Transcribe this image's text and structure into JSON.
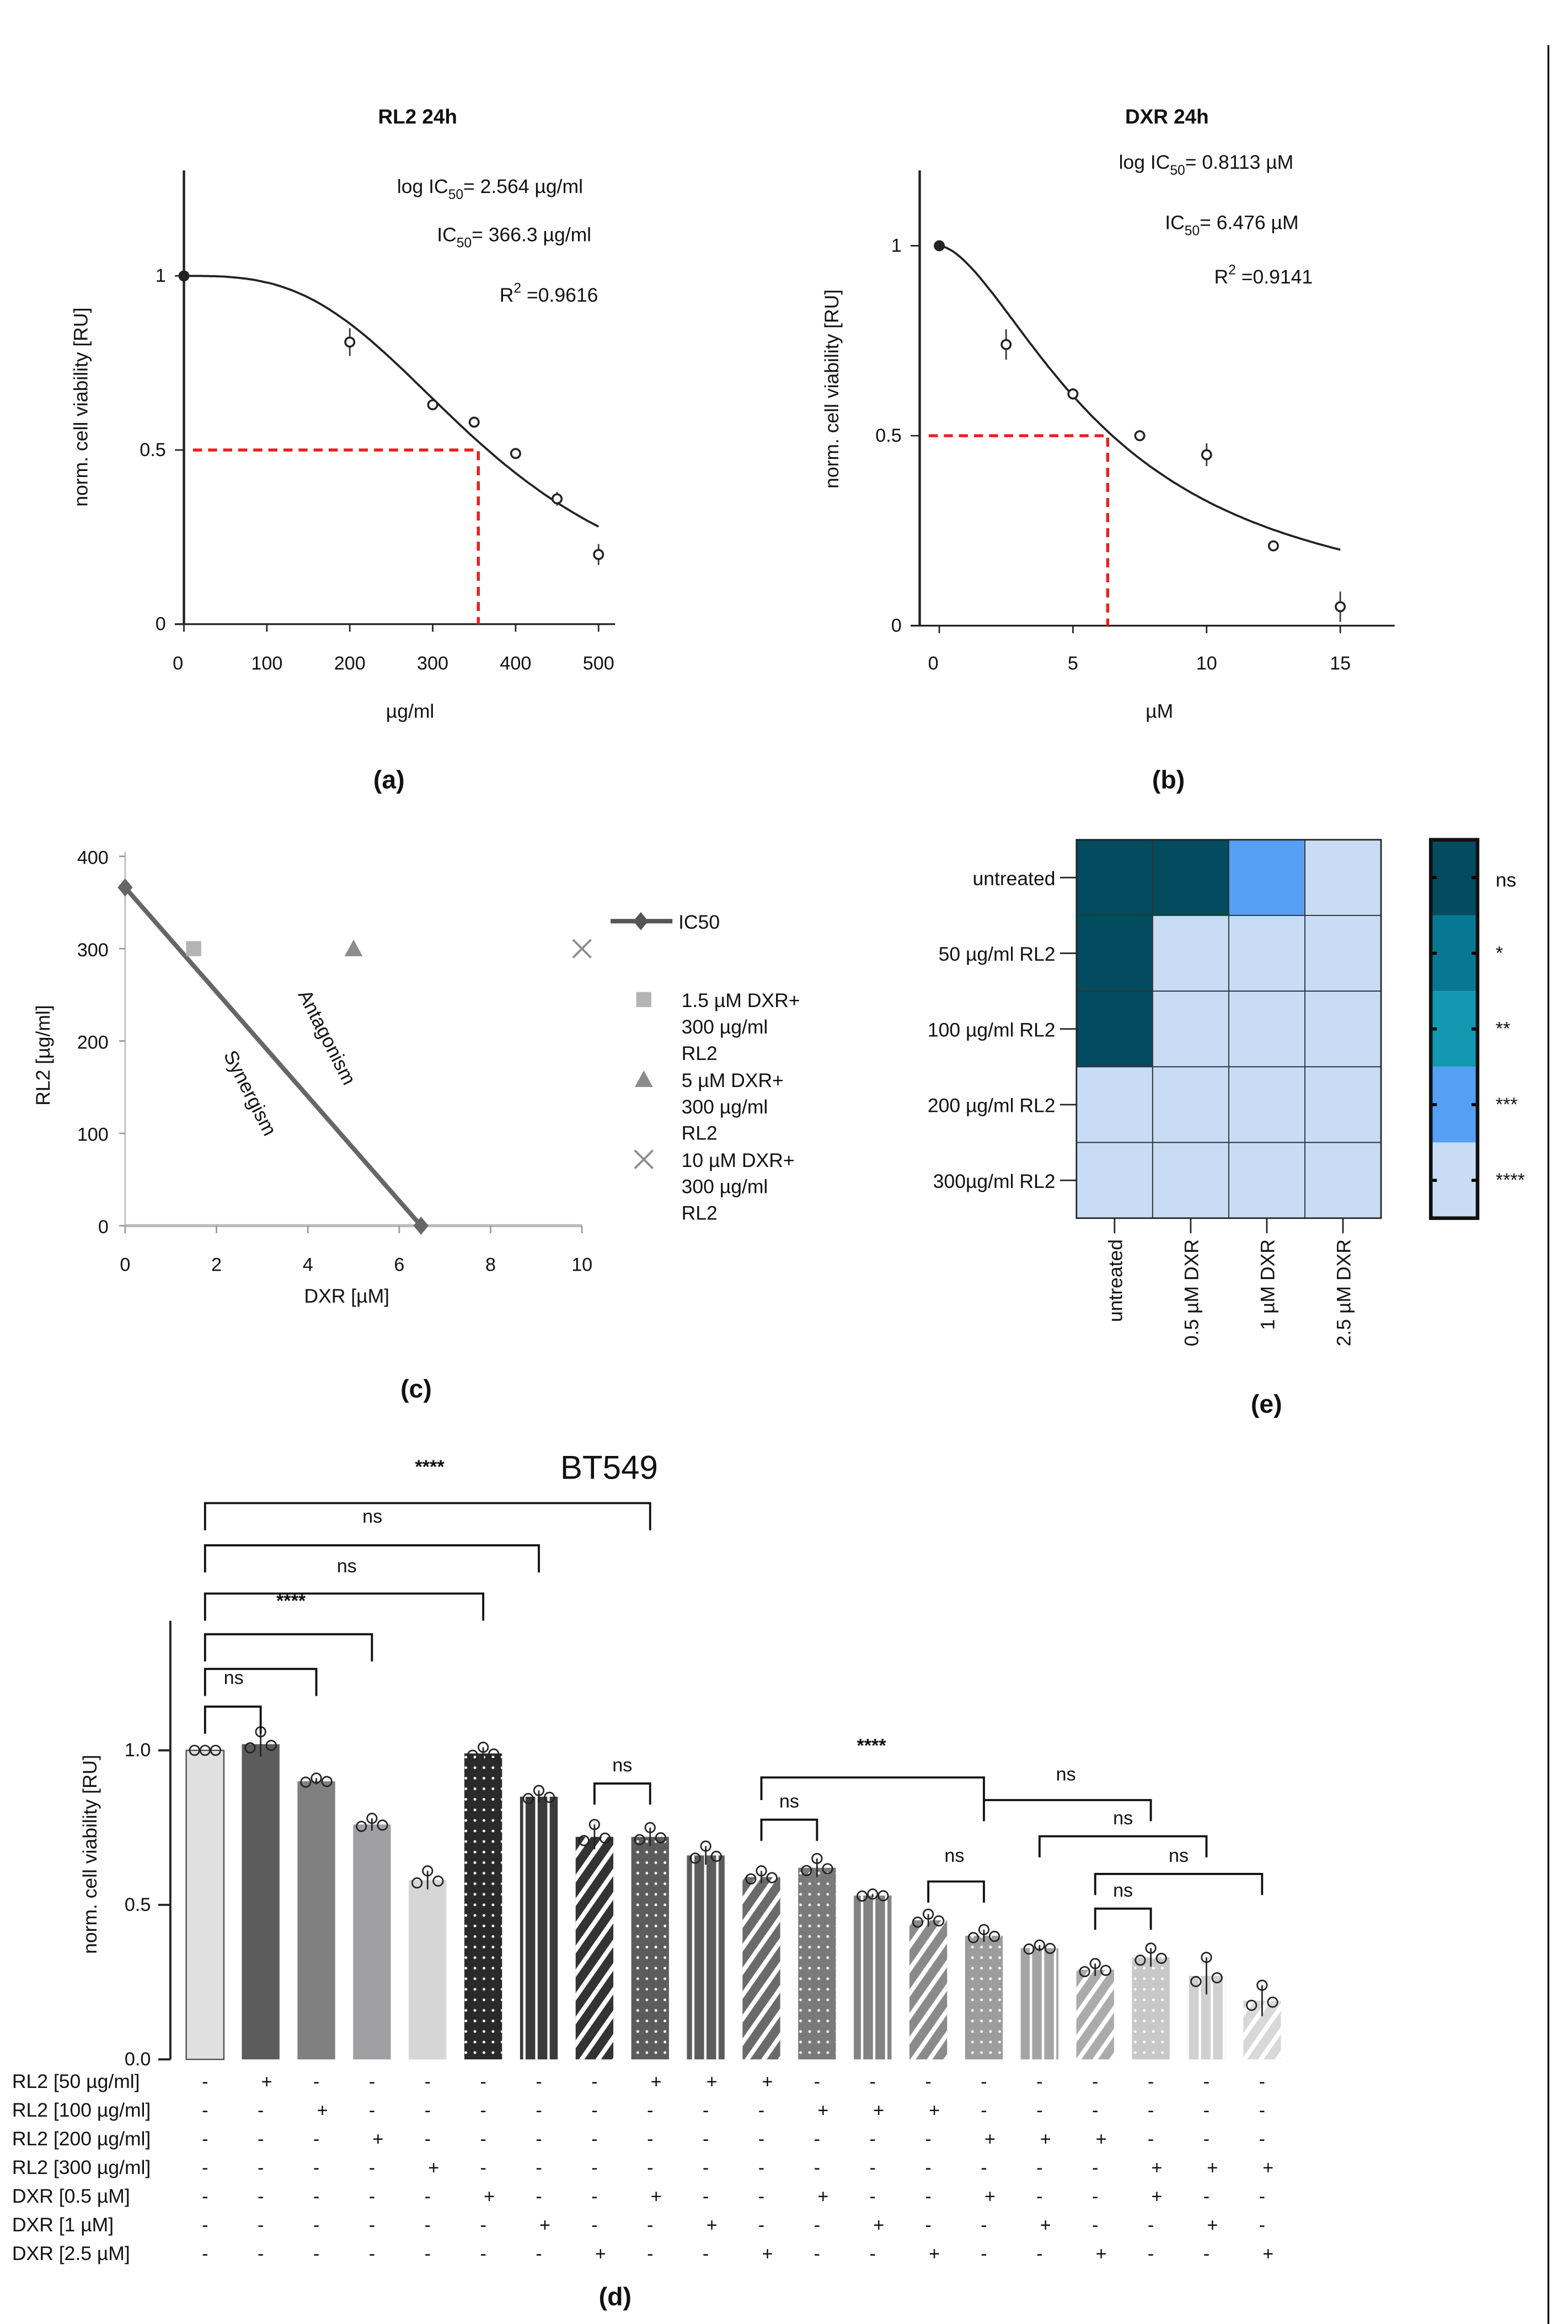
{
  "panel_labels": {
    "a": "(a)",
    "b": "(b)",
    "c": "(c)",
    "d": "(d)",
    "e": "(e)"
  },
  "chart_data": [
    {
      "id": "a",
      "type": "scatter",
      "title": "RL2  24h",
      "xlabel": "µg/ml",
      "ylabel": "norm. cell viability [RU]",
      "xlim": [
        0,
        500
      ],
      "ylim": [
        0,
        1.3
      ],
      "xticks": [
        0,
        100,
        200,
        300,
        400,
        500
      ],
      "yticks": [
        {
          "v": 0,
          "t": "0"
        },
        {
          "v": 0.5,
          "t": "0.5"
        },
        {
          "v": 1,
          "t": "1"
        }
      ],
      "points": [
        {
          "x": 0,
          "y": 1.0,
          "sd": 0
        },
        {
          "x": 200,
          "y": 0.81,
          "sd": 0.04
        },
        {
          "x": 300,
          "y": 0.63,
          "sd": 0.01
        },
        {
          "x": 350,
          "y": 0.58,
          "sd": 0.01
        },
        {
          "x": 400,
          "y": 0.49,
          "sd": 0.01
        },
        {
          "x": 450,
          "y": 0.36,
          "sd": 0.02
        },
        {
          "x": 500,
          "y": 0.2,
          "sd": 0.03
        }
      ],
      "fit": {
        "model": "log",
        "logIC50": 2.564,
        "hill": 3.04
      },
      "ic50_marker": {
        "x": 355,
        "y": 0.5,
        "color": "#e8201c"
      },
      "annotations": [
        {
          "pre": "log IC",
          "sub": "50",
          "post": "= 2.564 µg/ml"
        },
        {
          "pre": "IC",
          "sub": "50",
          "post": "= 366.3 µg/ml"
        },
        {
          "pre": "R",
          "sup": "2",
          "post": " =0.9616"
        }
      ]
    },
    {
      "id": "b",
      "type": "scatter",
      "title": "DXR 24h",
      "xlabel": "µM",
      "ylabel": "norm. cell viability [RU]",
      "xlim": [
        0,
        17
      ],
      "ylim": [
        0,
        1.2
      ],
      "xticks": [
        0,
        5,
        10,
        15
      ],
      "yticks": [
        {
          "v": 0,
          "t": "0"
        },
        {
          "v": 0.5,
          "t": "0.5"
        },
        {
          "v": 1,
          "t": "1"
        }
      ],
      "points": [
        {
          "x": 0,
          "y": 1.0,
          "sd": 0
        },
        {
          "x": 2.5,
          "y": 0.74,
          "sd": 0.04
        },
        {
          "x": 5,
          "y": 0.61,
          "sd": 0.015
        },
        {
          "x": 7.5,
          "y": 0.5,
          "sd": 0.005
        },
        {
          "x": 10,
          "y": 0.45,
          "sd": 0.03
        },
        {
          "x": 12.5,
          "y": 0.21,
          "sd": 0.005
        },
        {
          "x": 15,
          "y": 0.05,
          "sd": 0.04
        }
      ],
      "fit": {
        "model": "lin",
        "IC50": 6.476,
        "hill": 1.65
      },
      "ic50_marker": {
        "x": 6.3,
        "y": 0.5,
        "color": "#e8201c"
      },
      "annotations": [
        {
          "pre": "log IC",
          "sub": "50",
          "post": "= 0.8113 µM"
        },
        {
          "pre": "IC",
          "sub": "50",
          "post": "= 6.476 µM"
        },
        {
          "pre": "R",
          "sup": "2",
          "post": " =0.9141"
        }
      ]
    },
    {
      "id": "c",
      "type": "scatter",
      "title": "",
      "xlabel": "DXR [µM]",
      "ylabel": "RL2 [µg/ml]",
      "xlim": [
        0,
        10
      ],
      "ylim": [
        0,
        400
      ],
      "xticks": [
        0,
        2,
        4,
        6,
        8,
        10
      ],
      "yticks": [
        0,
        100,
        200,
        300,
        400
      ],
      "isobole": {
        "name": "IC50",
        "points": [
          [
            0,
            366.3
          ],
          [
            6.476,
            0
          ]
        ],
        "color": "#666666"
      },
      "regions": [
        "Antagonism",
        "Synergism"
      ],
      "combos": [
        {
          "x": 1.5,
          "y": 300,
          "marker": "square",
          "color": "#b4b4b4",
          "label": [
            "1.5 µM DXR+",
            "300 µg/ml",
            "RL2"
          ]
        },
        {
          "x": 5,
          "y": 300,
          "marker": "triangle",
          "color": "#8c8c8c",
          "label": [
            "5 µM DXR+",
            "300 µg/ml",
            "RL2"
          ]
        },
        {
          "x": 10,
          "y": 300,
          "marker": "x",
          "color": "#8c8c8c",
          "label": [
            "10 µM DXR+",
            "300 µg/ml",
            "RL2"
          ]
        }
      ]
    },
    {
      "id": "e",
      "type": "heatmap",
      "rows": [
        "untreated",
        "50 µg/ml RL2",
        "100 µg/ml RL2",
        "200 µg/ml RL2",
        "300µg/ml RL2"
      ],
      "cols": [
        "untreated",
        "0.5 µM DXR",
        "1 µM DXR",
        "2.5 µM DXR"
      ],
      "values": [
        [
          "ns",
          "ns",
          "***",
          "****"
        ],
        [
          "ns",
          "****",
          "****",
          "****"
        ],
        [
          "ns",
          "****",
          "****",
          "****"
        ],
        [
          "****",
          "****",
          "****",
          "****"
        ],
        [
          "****",
          "****",
          "****",
          "****"
        ]
      ],
      "legend": [
        {
          "label": "ns",
          "color": "#034b5e"
        },
        {
          "label": "*",
          "color": "#077893"
        },
        {
          "label": "**",
          "color": "#1298b0"
        },
        {
          "label": "***",
          "color": "#55a0f5"
        },
        {
          "label": "****",
          "color": "#c8dcf5"
        }
      ]
    },
    {
      "id": "d",
      "type": "bar",
      "title": "BT549",
      "ylabel": "norm. cell viability [RU]",
      "ylim": [
        0,
        1.4
      ],
      "yticks": [
        {
          "v": 0,
          "t": "0.0"
        },
        {
          "v": 0.5,
          "t": "0.5"
        },
        {
          "v": 1,
          "t": "1.0"
        }
      ],
      "bars": [
        {
          "value": 1.0,
          "sd": 0.0,
          "color": "#e0e0e0",
          "pattern": "none"
        },
        {
          "value": 1.02,
          "sd": 0.04,
          "color": "#5c5c5c",
          "pattern": "none"
        },
        {
          "value": 0.9,
          "sd": 0.01,
          "color": "#808080",
          "pattern": "none"
        },
        {
          "value": 0.76,
          "sd": 0.02,
          "color": "#a0a0a2",
          "pattern": "none"
        },
        {
          "value": 0.58,
          "sd": 0.03,
          "color": "#d6d6d6",
          "pattern": "none"
        },
        {
          "value": 0.99,
          "sd": 0.02,
          "color": "#2a2a2a",
          "pattern": "dots"
        },
        {
          "value": 0.85,
          "sd": 0.02,
          "color": "#3a3a3a",
          "pattern": "vstripes"
        },
        {
          "value": 0.72,
          "sd": 0.04,
          "color": "#333333",
          "pattern": "diag"
        },
        {
          "value": 0.72,
          "sd": 0.03,
          "color": "#5c5c5c",
          "pattern": "dots"
        },
        {
          "value": 0.66,
          "sd": 0.03,
          "color": "#5c5c5c",
          "pattern": "vstripes"
        },
        {
          "value": 0.59,
          "sd": 0.02,
          "color": "#6a6a6a",
          "pattern": "diag"
        },
        {
          "value": 0.62,
          "sd": 0.03,
          "color": "#7a7a7a",
          "pattern": "dots"
        },
        {
          "value": 0.53,
          "sd": 0.005,
          "color": "#838383",
          "pattern": "vstripes"
        },
        {
          "value": 0.45,
          "sd": 0.02,
          "color": "#8a8a8a",
          "pattern": "diag"
        },
        {
          "value": 0.4,
          "sd": 0.02,
          "color": "#9c9c9c",
          "pattern": "dots"
        },
        {
          "value": 0.36,
          "sd": 0.01,
          "color": "#a4a4a4",
          "pattern": "vstripes"
        },
        {
          "value": 0.29,
          "sd": 0.02,
          "color": "#ababab",
          "pattern": "diag"
        },
        {
          "value": 0.33,
          "sd": 0.03,
          "color": "#c8c8c8",
          "pattern": "dots"
        },
        {
          "value": 0.27,
          "sd": 0.06,
          "color": "#d0d0d0",
          "pattern": "vstripes"
        },
        {
          "value": 0.19,
          "sd": 0.05,
          "color": "#d8d8d8",
          "pattern": "diag"
        }
      ],
      "brackets": [
        {
          "from": 1,
          "to": 9,
          "label": "****"
        },
        {
          "from": 1,
          "to": 7,
          "label": "ns"
        },
        {
          "from": 1,
          "to": 6,
          "label": "ns"
        },
        {
          "from": 1,
          "to": 4,
          "label": "****"
        },
        {
          "from": 1,
          "to": 3,
          "label": "ns"
        },
        {
          "from": 1,
          "to": 2,
          "label": "ns"
        },
        {
          "from": 8,
          "to": 9,
          "label": "ns"
        },
        {
          "from": 11,
          "to": 15,
          "label": "****"
        },
        {
          "from": 11,
          "to": 12,
          "label": "ns"
        },
        {
          "from": 15,
          "to": 18,
          "label": "ns"
        },
        {
          "from": 16,
          "to": 19,
          "label": "ns"
        },
        {
          "from": 17,
          "to": 20,
          "label": "ns"
        },
        {
          "from": 14,
          "to": 15,
          "label": "ns"
        },
        {
          "from": 17,
          "to": 18,
          "label": "ns"
        }
      ],
      "treatment_table": [
        {
          "label": "RL2 [50 µg/ml]",
          "on": [
            2,
            9,
            10,
            11
          ]
        },
        {
          "label": "RL2 [100 µg/ml]",
          "on": [
            3,
            12,
            13,
            14
          ]
        },
        {
          "label": "RL2 [200 µg/ml]",
          "on": [
            4,
            15,
            16,
            17
          ]
        },
        {
          "label": "RL2 [300 µg/ml]",
          "on": [
            5,
            18,
            19,
            20
          ]
        },
        {
          "label": "DXR [0.5 µM]",
          "on": [
            6,
            9,
            12,
            15,
            18
          ]
        },
        {
          "label": "DXR [1 µM]",
          "on": [
            7,
            10,
            13,
            16,
            19
          ]
        },
        {
          "label": "DXR [2.5 µM]",
          "on": [
            8,
            11,
            14,
            17,
            20
          ]
        }
      ],
      "plus": "+",
      "minus": "-"
    }
  ]
}
